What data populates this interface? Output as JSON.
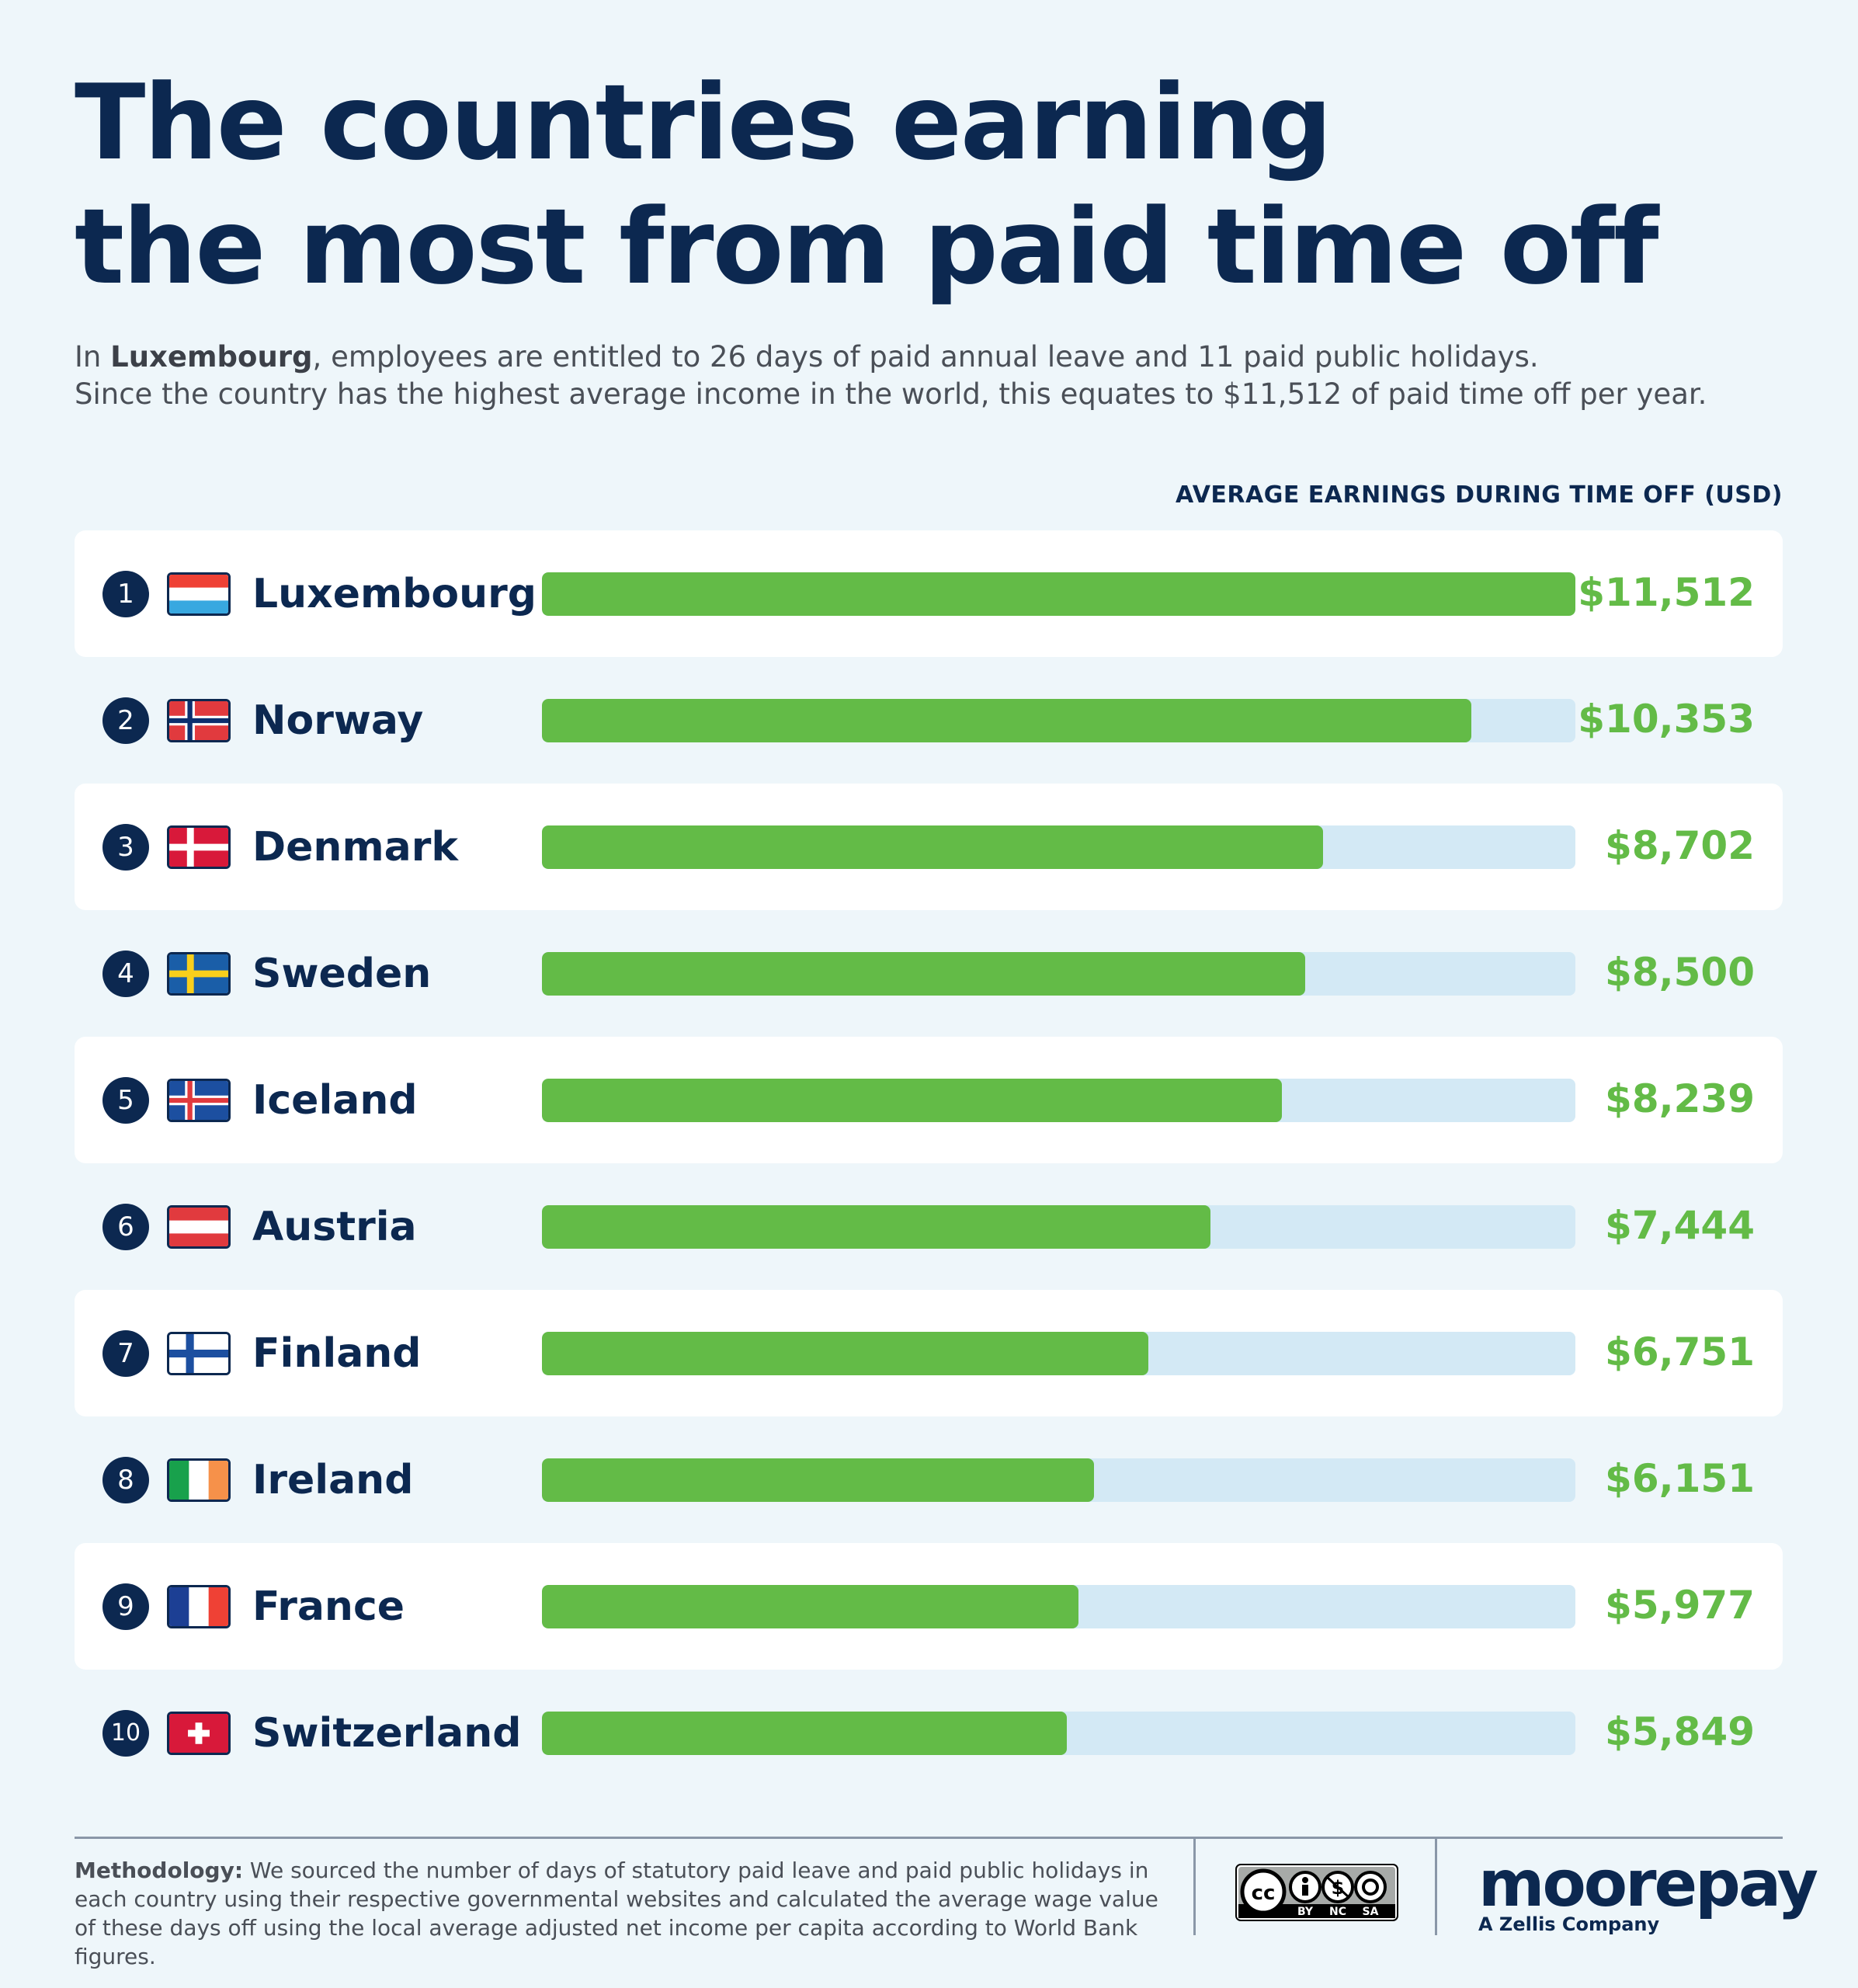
{
  "title_line1": "The countries earning",
  "title_line2": "the most from paid time off",
  "intro": {
    "line1_prefix": "In ",
    "line1_bold": "Luxembourg",
    "line1_suffix": ", employees are entitled to 26 days of paid annual leave and 11 paid public holidays.",
    "line2": "Since the country has the highest average income in the world, this equates to $11,512 of paid time off per year."
  },
  "chart_data": {
    "type": "bar",
    "orientation": "horizontal",
    "title": "AVERAGE EARNINGS DURING TIME OFF (USD)",
    "ranks": [
      "1",
      "2",
      "3",
      "4",
      "5",
      "6",
      "7",
      "8",
      "9",
      "10"
    ],
    "categories": [
      "Luxembourg",
      "Norway",
      "Denmark",
      "Sweden",
      "Iceland",
      "Austria",
      "Finland",
      "Ireland",
      "France",
      "Switzerland"
    ],
    "values": [
      11512,
      10353,
      8702,
      8500,
      8239,
      7444,
      6751,
      6151,
      5977,
      5849
    ],
    "value_labels": [
      "$11,512",
      "$10,353",
      "$8,702",
      "$8,500",
      "$8,239",
      "$7,444",
      "$6,751",
      "$6,151",
      "$5,977",
      "$5,849"
    ],
    "xlim": [
      0,
      11512
    ],
    "bar_color": "#63bb47",
    "track_color": "#d3e9f5",
    "flags": [
      "flag-luxembourg-icon",
      "flag-norway-icon",
      "flag-denmark-icon",
      "flag-sweden-icon",
      "flag-iceland-icon",
      "flag-austria-icon",
      "flag-finland-icon",
      "flag-ireland-icon",
      "flag-france-icon",
      "flag-switzerland-icon"
    ]
  },
  "footer": {
    "methodology_label": "Methodology:",
    "methodology_text": " We sourced the number of days of statutory paid leave and paid public holidays in each country using their respective governmental websites and calculated the average wage value of these days off using the local average adjusted net income per capita according to World Bank figures.",
    "license_labels": [
      "BY",
      "NC",
      "SA"
    ],
    "brand": "moorepay",
    "brand_sub": "A Zellis Company"
  },
  "colors": {
    "navy": "#0c2850",
    "green": "#63bb47",
    "background": "#eef6fa"
  }
}
